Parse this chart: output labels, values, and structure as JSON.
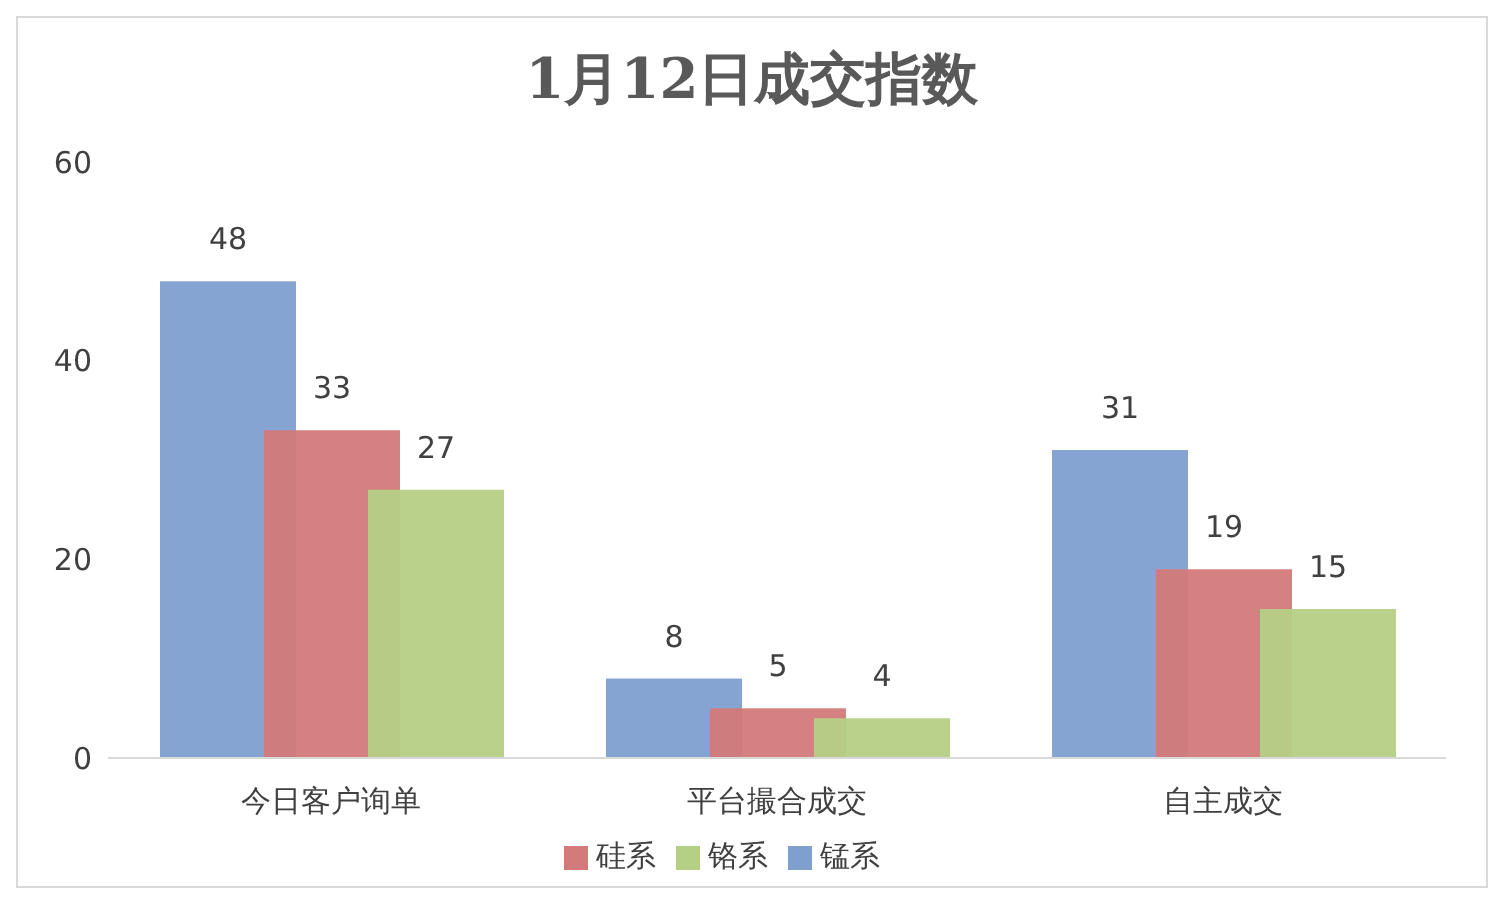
{
  "chart_data": {
    "type": "bar",
    "title": "1月12日成交指数",
    "categories": [
      "今日客户询单",
      "平台撮合成交",
      "自主成交"
    ],
    "series": [
      {
        "name": "锰系",
        "color": "#7f9fcf",
        "values": [
          48,
          8,
          31
        ]
      },
      {
        "name": "硅系",
        "color": "#d37a7a",
        "values": [
          33,
          5,
          19
        ]
      },
      {
        "name": "铬系",
        "color": "#b5cf85",
        "values": [
          27,
          4,
          15
        ]
      }
    ],
    "ylim": [
      0,
      60
    ],
    "yticks": [
      0,
      20,
      40,
      60
    ],
    "grid": false,
    "legend": "bottom",
    "data_labels": true
  }
}
